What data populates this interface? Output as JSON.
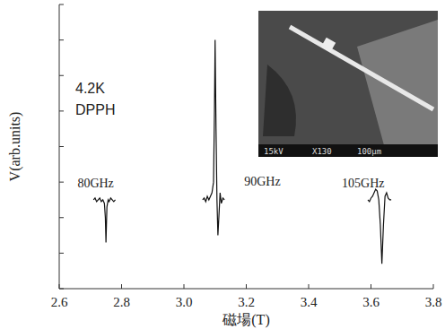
{
  "chart_data": {
    "type": "line",
    "x_label": "磁場(T)",
    "y_label": "V(arb.units)",
    "annotations": [
      "4.2K",
      "DPPH"
    ],
    "xlim": [
      2.6,
      3.8
    ],
    "xticks": [
      2.6,
      2.8,
      {
        "value": 3.0,
        "label": "3.0"
      },
      3.2,
      3.4,
      3.6,
      3.8
    ],
    "ylim": [
      0,
      8
    ],
    "yticks": [
      0,
      1,
      2,
      3,
      4,
      5,
      6,
      7,
      8
    ],
    "tick_labels": "x",
    "grid": false,
    "series": [
      {
        "name": "80GHz",
        "color": "#111111",
        "x": [
          2.71,
          2.715,
          2.72,
          2.725,
          2.73,
          2.735,
          2.74,
          2.745,
          2.748,
          2.75,
          2.753,
          2.757,
          2.76,
          2.765,
          2.77,
          2.775,
          2.78
        ],
        "values": [
          2.5,
          2.55,
          2.45,
          2.5,
          2.55,
          2.45,
          2.5,
          2.4,
          2.0,
          1.3,
          2.3,
          2.5,
          2.45,
          2.55,
          2.5,
          2.45,
          2.5
        ]
      },
      {
        "name": "90GHz",
        "color": "#111111",
        "x": [
          3.06,
          3.065,
          3.07,
          3.075,
          3.08,
          3.085,
          3.09,
          3.095,
          3.098,
          3.1,
          3.103,
          3.106,
          3.109,
          3.112,
          3.116,
          3.12,
          3.125,
          3.13
        ],
        "values": [
          2.5,
          2.55,
          2.45,
          2.6,
          2.5,
          2.6,
          2.7,
          3.0,
          5.0,
          7.0,
          4.5,
          2.5,
          1.5,
          2.0,
          2.7,
          2.4,
          2.55,
          2.5
        ]
      },
      {
        "name": "105GHz",
        "color": "#111111",
        "x": [
          3.59,
          3.595,
          3.6,
          3.605,
          3.61,
          3.615,
          3.62,
          3.625,
          3.63,
          3.635,
          3.64,
          3.645,
          3.65,
          3.655,
          3.66,
          3.665
        ],
        "values": [
          2.5,
          2.45,
          2.55,
          2.6,
          2.7,
          2.8,
          2.75,
          2.5,
          1.8,
          0.7,
          1.8,
          2.6,
          2.7,
          2.55,
          2.5,
          2.5
        ]
      }
    ],
    "inset": {
      "texts": [
        "15kV",
        "X130",
        "100μm"
      ]
    }
  }
}
